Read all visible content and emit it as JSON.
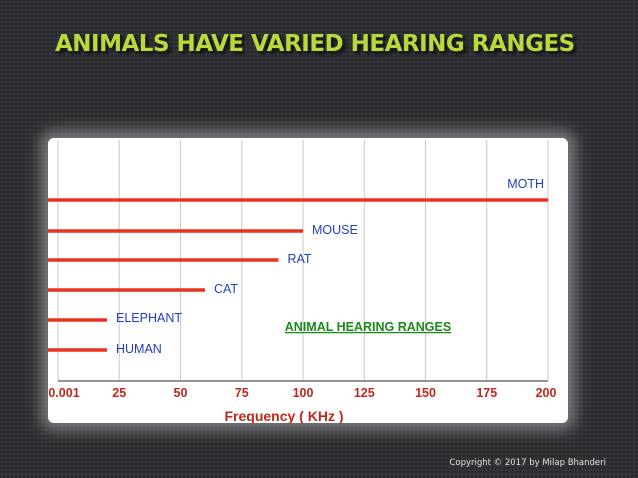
{
  "slide": {
    "title": "ANIMALS HAVE VARIED HEARING RANGES",
    "copyright": "Copyright © 2017 by Milap Bhanderi"
  },
  "colors": {
    "title": "#b6d93b",
    "bar": "#e8331e",
    "label": "#1f3fbf",
    "annotation": "#1a8a1a",
    "xlabel": "#c0281b",
    "grid": "#c8c8c8"
  },
  "chart_data": {
    "type": "bar",
    "orientation": "horizontal",
    "title": "",
    "annotation": "ANIMAL HEARING RANGES",
    "xlabel": "Frequency ( KHz )",
    "ylabel": "",
    "xlim": [
      0,
      200
    ],
    "xticks": [
      "0.001",
      "25",
      "50",
      "75",
      "100",
      "125",
      "150",
      "175",
      "200"
    ],
    "grid": true,
    "categories": [
      "MOTH",
      "MOUSE",
      "RAT",
      "CAT",
      "ELEPHANT",
      "HUMAN"
    ],
    "values": [
      200,
      100,
      90,
      60,
      20,
      20
    ]
  }
}
